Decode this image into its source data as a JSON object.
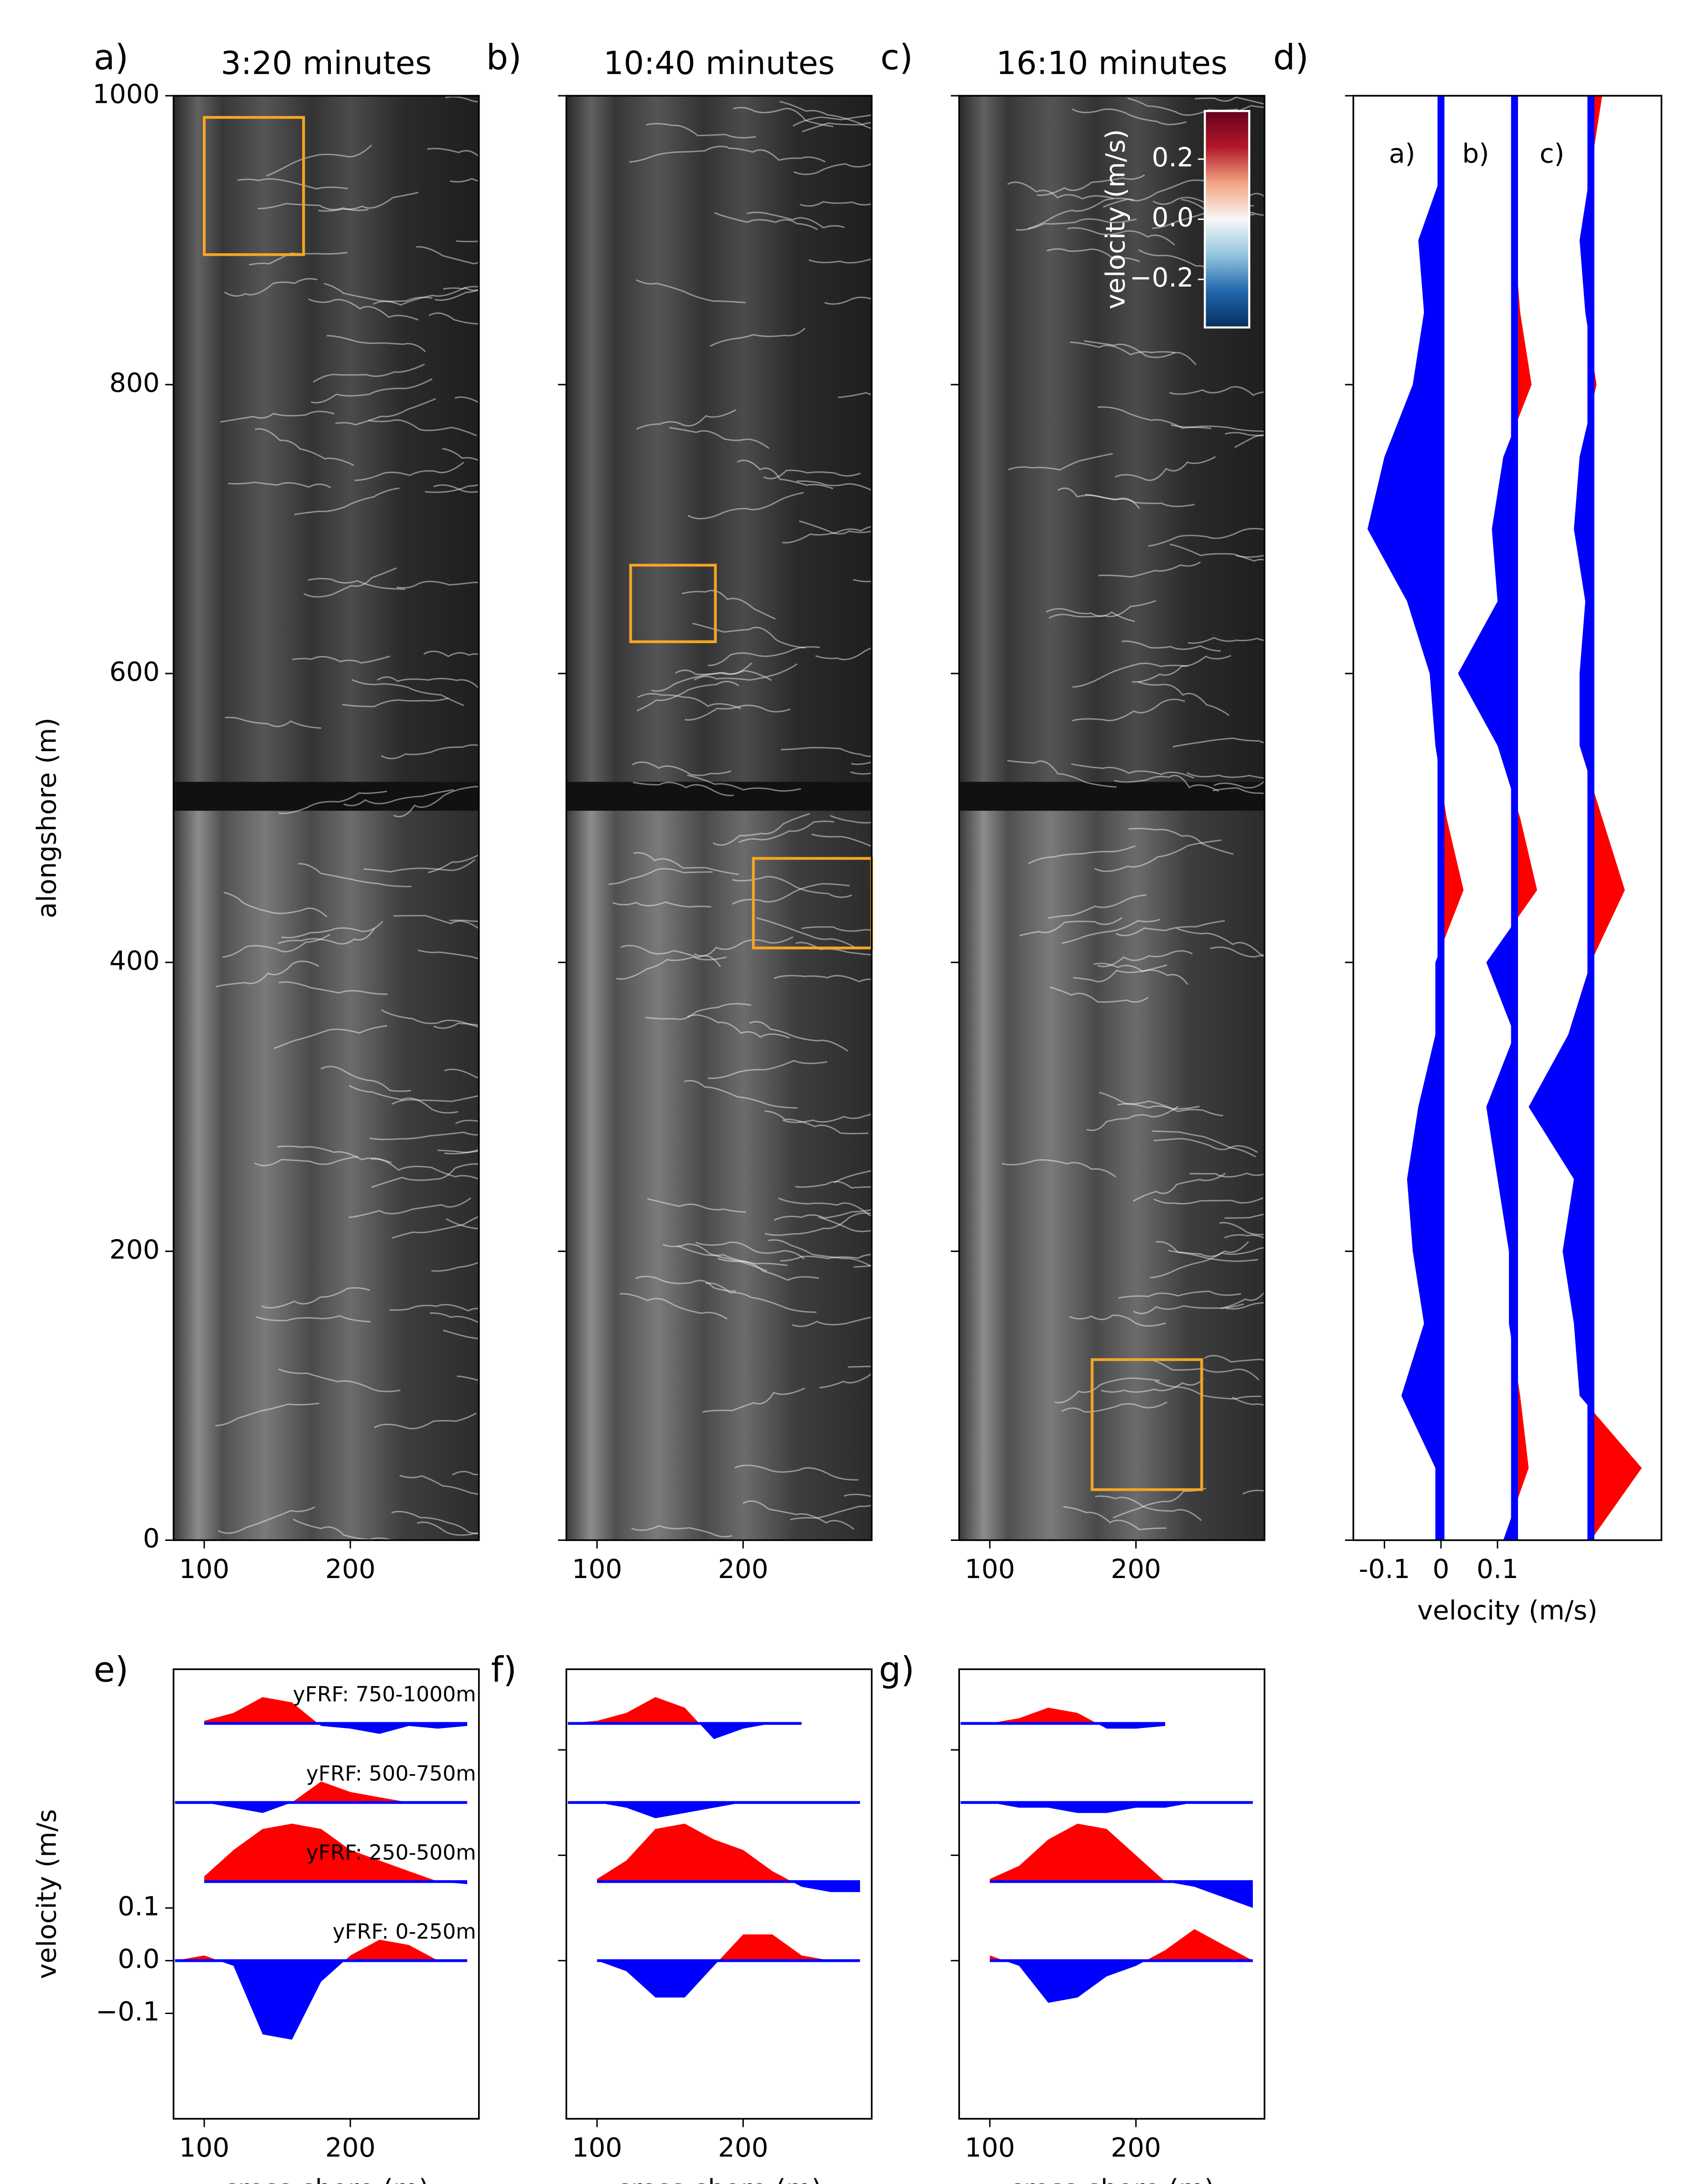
{
  "chart_data": [
    {
      "type": "streamline",
      "label": "a)",
      "title": "3:20 minutes",
      "ylabel": "alongshore (m)",
      "xlim": [
        79,
        288
      ],
      "xticks": [
        100,
        200
      ],
      "ylim": [
        0,
        1000
      ],
      "yticks": [
        0,
        200,
        400,
        600,
        800,
        1000
      ],
      "boxes": [
        [
          100,
          168,
          890,
          985
        ]
      ],
      "box_color": "#f5a623"
    },
    {
      "type": "streamline",
      "label": "b)",
      "title": "10:40 minutes",
      "xlim": [
        79,
        288
      ],
      "xticks": [
        100,
        200
      ],
      "ylim": [
        0,
        1000
      ],
      "yticks": [
        0,
        200,
        400,
        600,
        800,
        1000
      ],
      "ytick_labels": false,
      "boxes": [
        [
          123,
          181,
          622,
          675
        ],
        [
          207,
          288,
          410,
          472
        ]
      ],
      "box_color": "#f5a623"
    },
    {
      "type": "streamline",
      "label": "c)",
      "title": "16:10 minutes",
      "xlim": [
        79,
        288
      ],
      "xticks": [
        100,
        200
      ],
      "ylim": [
        0,
        1000
      ],
      "yticks": [
        0,
        200,
        400,
        600,
        800,
        1000
      ],
      "ytick_labels": false,
      "boxes": [
        [
          170,
          245,
          35,
          125
        ]
      ],
      "box_color": "#f5a623",
      "colorbar": {
        "label": "velocity (m/s)",
        "clim": [
          -0.36,
          0.36
        ],
        "ticks": [
          0.2,
          {
            "value": 0,
            "label": "0.0"
          },
          {
            "value": -0.2,
            "label": "−0.2"
          }
        ],
        "colors": [
          "#053061",
          "#2166ac",
          "#92c5de",
          "#f7f7f7",
          "#f4a582",
          "#b2182b",
          "#67001f"
        ]
      }
    },
    {
      "type": "wiggle",
      "label": "d)",
      "xlabel": "velocity (m/s)",
      "xlim": [
        -0.155,
        0.39
      ],
      "xticks": [
        {
          "value": -0.1,
          "label": "-0.1"
        },
        0,
        0.1
      ],
      "ylim": [
        0,
        1000
      ],
      "yticks": [
        0,
        200,
        400,
        600,
        800,
        1000
      ],
      "ytick_labels": false,
      "pos_color": "#ff0000",
      "neg_color": "#0000ff",
      "y": [
        1000,
        950,
        900,
        850,
        800,
        750,
        700,
        650,
        600,
        550,
        500,
        450,
        400,
        350,
        300,
        250,
        200,
        150,
        100,
        50,
        0
      ],
      "series": [
        {
          "name": "a)",
          "values": [
            0,
            0.005,
            -0.04,
            -0.03,
            -0.05,
            -0.1,
            -0.13,
            -0.06,
            -0.02,
            -0.01,
            0.01,
            0.04,
            -0.01,
            -0.01,
            -0.04,
            -0.06,
            -0.05,
            -0.03,
            -0.07,
            -0.01,
            -0.01
          ]
        },
        {
          "name": "b)",
          "values": [
            0,
            0,
            0,
            0.01,
            0.03,
            -0.02,
            -0.04,
            -0.03,
            -0.1,
            -0.03,
            0.01,
            0.04,
            -0.05,
            0,
            -0.05,
            -0.03,
            -0.01,
            -0.01,
            0.01,
            0.025,
            -0.02
          ]
        },
        {
          "name": "c)",
          "values": [
            0.02,
            0,
            -0.02,
            -0.01,
            0.01,
            -0.02,
            -0.03,
            -0.01,
            -0.02,
            -0.02,
            0.02,
            0.06,
            0,
            -0.04,
            -0.11,
            -0.03,
            -0.05,
            -0.03,
            -0.02,
            0.09,
            0
          ]
        }
      ]
    },
    {
      "type": "ridgeline",
      "label": "e)",
      "xlabel": "cross-shore (m)",
      "ylabel": "velocity (m/s",
      "xlim": [
        79,
        288
      ],
      "xticks": [
        100,
        200
      ],
      "ylim": [
        -0.3,
        0.553
      ],
      "yticks": [
        {
          "value": -0.1,
          "label": "−0.1"
        },
        {
          "value": 0,
          "label": "0.0"
        },
        0.1
      ],
      "pos_color": "#ff0000",
      "neg_color": "#0000ff",
      "x": [
        80,
        100,
        120,
        140,
        160,
        180,
        200,
        220,
        240,
        260,
        280
      ],
      "series": [
        {
          "name": "yFRF: 0-250m",
          "values": [
            0,
            0.01,
            -0.01,
            -0.14,
            -0.15,
            -0.04,
            0.01,
            0.04,
            0.03,
            0,
            0
          ]
        },
        {
          "name": "yFRF: 250-500m",
          "values": [
            null,
            0.01,
            0.06,
            0.1,
            0.11,
            0.1,
            0.06,
            0.04,
            0.02,
            0,
            -0.005
          ]
        },
        {
          "name": "yFRF: 500-750m",
          "values": [
            0,
            0,
            -0.01,
            -0.02,
            0,
            0.04,
            0.02,
            0.01,
            0,
            0,
            0
          ]
        },
        {
          "name": "yFRF: 750-1000m",
          "values": [
            null,
            0.005,
            0.02,
            0.05,
            0.04,
            -0.005,
            -0.01,
            -0.02,
            -0.005,
            -0.01,
            -0.005
          ]
        }
      ]
    },
    {
      "type": "ridgeline",
      "label": "f)",
      "xlabel": "cross-shore (m)",
      "xlim": [
        79,
        288
      ],
      "xticks": [
        100,
        200
      ],
      "ylim": [
        -0.3,
        0.553
      ],
      "yticks": [
        0,
        0.2,
        0.4
      ],
      "ytick_labels": false,
      "pos_color": "#ff0000",
      "neg_color": "#0000ff",
      "x": [
        80,
        100,
        120,
        140,
        160,
        180,
        200,
        220,
        240,
        260,
        280
      ],
      "series": [
        {
          "values": [
            null,
            0,
            -0.02,
            -0.07,
            -0.07,
            -0.01,
            0.05,
            0.05,
            0.01,
            0,
            0
          ]
        },
        {
          "values": [
            null,
            0.005,
            0.04,
            0.1,
            0.11,
            0.08,
            0.06,
            0.02,
            -0.01,
            -0.02,
            -0.02
          ]
        },
        {
          "values": [
            0,
            0,
            -0.01,
            -0.03,
            -0.02,
            -0.01,
            0,
            0,
            0,
            0,
            0
          ]
        },
        {
          "values": [
            0,
            0.005,
            0.02,
            0.05,
            0.03,
            -0.03,
            -0.01,
            0,
            0,
            null,
            0
          ]
        }
      ]
    },
    {
      "type": "ridgeline",
      "label": "g)",
      "xlabel": "cross-shore (m)",
      "xlim": [
        79,
        288
      ],
      "xticks": [
        100,
        200
      ],
      "ylim": [
        -0.3,
        0.553
      ],
      "yticks": [
        0,
        0.2,
        0.4
      ],
      "ytick_labels": false,
      "pos_color": "#ff0000",
      "neg_color": "#0000ff",
      "x": [
        80,
        100,
        120,
        140,
        160,
        180,
        200,
        220,
        240,
        260,
        280
      ],
      "series": [
        {
          "values": [
            null,
            0.01,
            -0.01,
            -0.08,
            -0.07,
            -0.03,
            -0.01,
            0.02,
            0.06,
            0.03,
            0
          ]
        },
        {
          "values": [
            null,
            0.005,
            0.03,
            0.08,
            0.11,
            0.1,
            0.05,
            0,
            -0.01,
            -0.03,
            -0.05
          ]
        },
        {
          "values": [
            0,
            0,
            -0.01,
            -0.01,
            -0.02,
            -0.02,
            -0.01,
            -0.01,
            0,
            0,
            0
          ]
        },
        {
          "values": [
            0,
            0,
            0.01,
            0.03,
            0.02,
            -0.01,
            -0.01,
            -0.005,
            null,
            null,
            null
          ]
        }
      ]
    }
  ]
}
